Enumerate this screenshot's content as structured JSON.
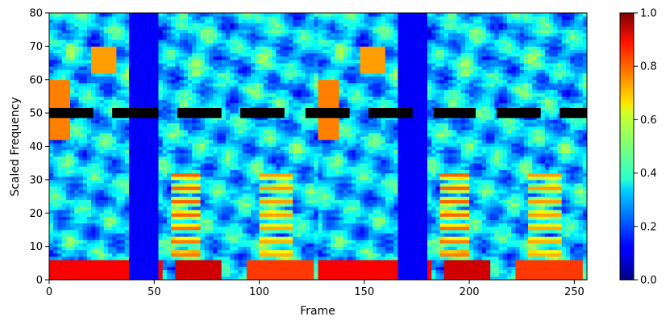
{
  "chart_data": {
    "type": "heatmap",
    "title": "",
    "xlabel": "Frame",
    "ylabel": "Scaled Frequency",
    "xlim": [
      0,
      256
    ],
    "ylim": [
      0,
      80
    ],
    "xticks": [
      "0",
      "50",
      "100",
      "150",
      "200",
      "250"
    ],
    "yticks": [
      "0",
      "10",
      "20",
      "30",
      "40",
      "50",
      "60",
      "70",
      "80"
    ],
    "colormap": "jet",
    "colorbar": {
      "range": [
        0,
        1
      ],
      "ticks": [
        "0.0",
        "0.2",
        "0.4",
        "0.6",
        "0.8",
        "1.0"
      ]
    },
    "mask_segments": {
      "y_range": [
        48.5,
        51.5
      ],
      "color": "#000000",
      "x_ranges": [
        [
          0,
          21
        ],
        [
          30,
          52
        ],
        [
          61,
          82
        ],
        [
          91,
          112
        ],
        [
          122,
          143
        ],
        [
          152,
          173
        ],
        [
          183,
          203
        ],
        [
          213,
          234
        ],
        [
          243,
          256
        ]
      ]
    },
    "texture": {
      "repeat_period_frames": 128,
      "features": [
        {
          "label": "low-frequency energy band",
          "x_range": [
            0,
            54
          ],
          "y_range": [
            0,
            6
          ],
          "value": 0.88
        },
        {
          "label": "low-frequency energy band",
          "x_range": [
            60,
            82
          ],
          "y_range": [
            0,
            6
          ],
          "value": 0.92
        },
        {
          "label": "low-frequency energy band",
          "x_range": [
            95,
            125
          ],
          "y_range": [
            0,
            6
          ],
          "value": 0.82
        },
        {
          "label": "quiet frames",
          "x_range": [
            38,
            52
          ],
          "y_range": [
            0,
            80
          ],
          "value": 0.12
        },
        {
          "label": "formant stripes",
          "x_range": [
            58,
            72
          ],
          "y_range": [
            6,
            32
          ],
          "value": 0.78
        },
        {
          "label": "formant stripes",
          "x_range": [
            100,
            116
          ],
          "y_range": [
            6,
            32
          ],
          "value": 0.72
        },
        {
          "label": "upper band",
          "x_range": [
            0,
            10
          ],
          "y_range": [
            42,
            60
          ],
          "value": 0.75
        },
        {
          "label": "upper band",
          "x_range": [
            20,
            32
          ],
          "y_range": [
            62,
            70
          ],
          "value": 0.72
        }
      ]
    }
  }
}
